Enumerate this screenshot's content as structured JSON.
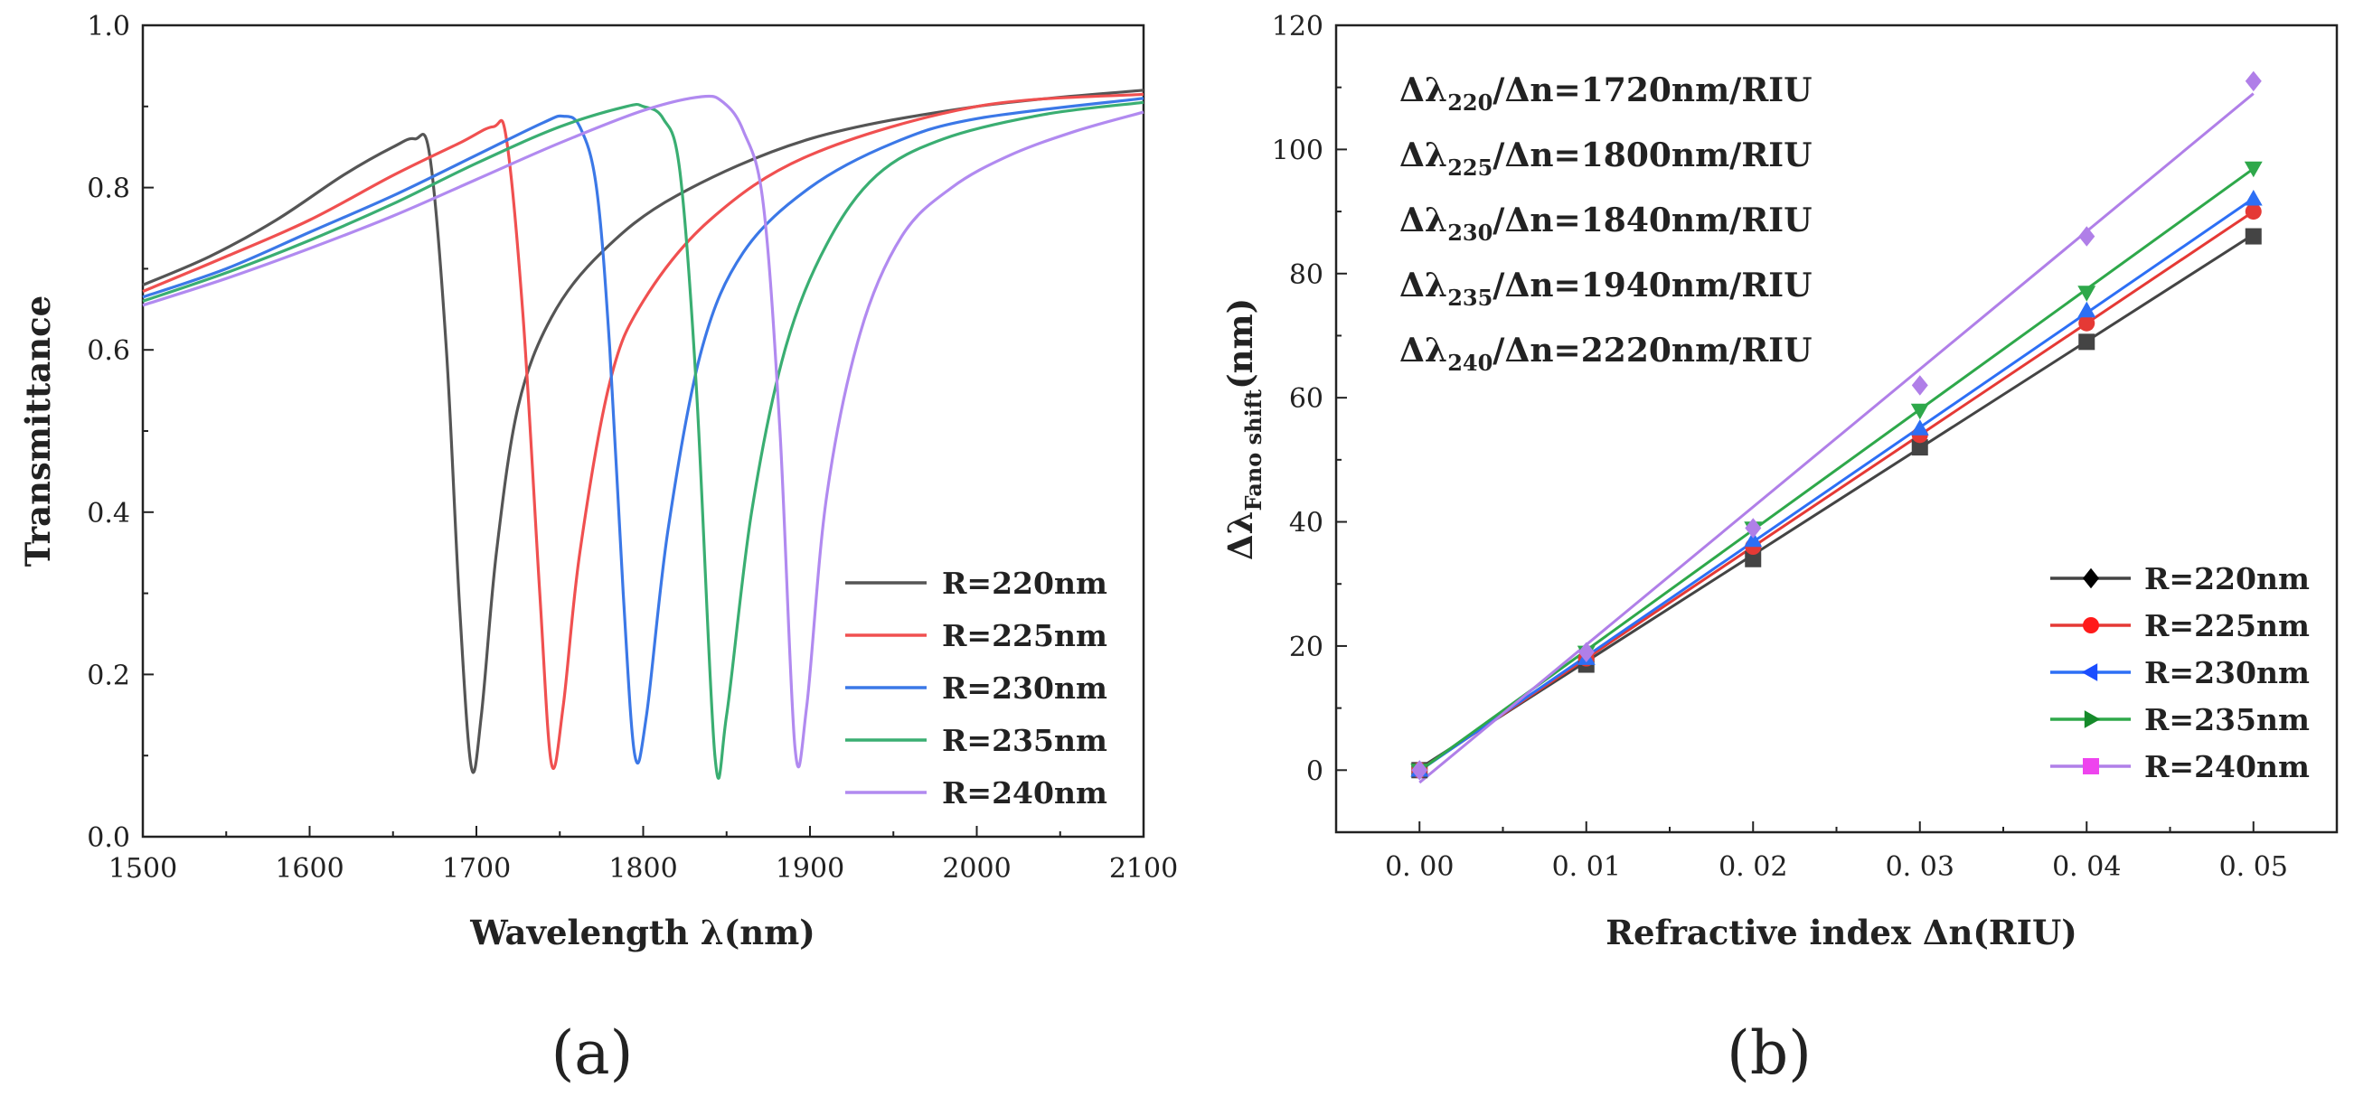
{
  "chart_data": [
    {
      "panel": "(a)",
      "type": "line",
      "xlabel": "Wavelength λ(nm)",
      "ylabel": "Transmittance",
      "xlim": [
        1500,
        2100
      ],
      "ylim": [
        0.0,
        1.0
      ],
      "x_ticks": [
        "1500",
        "1600",
        "1700",
        "1800",
        "1900",
        "2000",
        "2100"
      ],
      "y_ticks": [
        "0.0",
        "0.2",
        "0.4",
        "0.6",
        "0.8",
        "1.0"
      ],
      "legend_position": "bottom-right",
      "series": [
        {
          "name": "R=220nm",
          "color": "#555555",
          "x": [
            1500,
            1540,
            1580,
            1620,
            1650,
            1663,
            1672,
            1682,
            1690,
            1697,
            1703,
            1712,
            1725,
            1745,
            1775,
            1820,
            1900,
            2000,
            2100
          ],
          "y": [
            0.68,
            0.715,
            0.76,
            0.815,
            0.85,
            0.86,
            0.84,
            0.6,
            0.28,
            0.085,
            0.15,
            0.35,
            0.53,
            0.64,
            0.72,
            0.79,
            0.86,
            0.9,
            0.92
          ]
        },
        {
          "name": "R=225nm",
          "color": "#f05050",
          "x": [
            1500,
            1550,
            1600,
            1650,
            1690,
            1710,
            1718,
            1728,
            1738,
            1745,
            1752,
            1762,
            1780,
            1800,
            1840,
            1900,
            2000,
            2100
          ],
          "y": [
            0.672,
            0.715,
            0.76,
            0.815,
            0.855,
            0.875,
            0.86,
            0.64,
            0.3,
            0.09,
            0.16,
            0.35,
            0.56,
            0.66,
            0.76,
            0.84,
            0.9,
            0.915
          ]
        },
        {
          "name": "R=230nm",
          "color": "#3b78e7",
          "x": [
            1500,
            1550,
            1600,
            1650,
            1700,
            1740,
            1752,
            1762,
            1772,
            1780,
            1788,
            1795,
            1802,
            1815,
            1835,
            1860,
            1900,
            1950,
            2000,
            2100
          ],
          "y": [
            0.665,
            0.7,
            0.745,
            0.79,
            0.84,
            0.88,
            0.888,
            0.875,
            0.8,
            0.6,
            0.3,
            0.1,
            0.15,
            0.38,
            0.6,
            0.72,
            0.8,
            0.855,
            0.885,
            0.91
          ]
        },
        {
          "name": "R=235nm",
          "color": "#3aae72",
          "x": [
            1500,
            1550,
            1600,
            1650,
            1700,
            1750,
            1790,
            1800,
            1812,
            1822,
            1832,
            1843,
            1850,
            1865,
            1885,
            1910,
            1940,
            1980,
            2040,
            2100
          ],
          "y": [
            0.66,
            0.695,
            0.735,
            0.78,
            0.83,
            0.875,
            0.9,
            0.9,
            0.885,
            0.82,
            0.55,
            0.1,
            0.15,
            0.4,
            0.6,
            0.73,
            0.815,
            0.86,
            0.89,
            0.905
          ]
        },
        {
          "name": "R=240nm",
          "color": "#b18af0",
          "x": [
            1500,
            1550,
            1600,
            1650,
            1700,
            1750,
            1800,
            1835,
            1848,
            1860,
            1872,
            1882,
            1891,
            1898,
            1910,
            1930,
            1955,
            1985,
            2020,
            2060,
            2100
          ],
          "y": [
            0.655,
            0.688,
            0.725,
            0.765,
            0.81,
            0.855,
            0.895,
            0.912,
            0.905,
            0.87,
            0.78,
            0.5,
            0.11,
            0.16,
            0.42,
            0.62,
            0.74,
            0.8,
            0.84,
            0.87,
            0.893
          ]
        }
      ]
    },
    {
      "panel": "(b)",
      "type": "scatter",
      "xlabel": "Refractive index Δn(RIU)",
      "ylabel_main": "Δλ",
      "ylabel_sub": "Fano shift",
      "ylabel_tail": "(nm)",
      "xlim": [
        -0.005,
        0.055
      ],
      "ylim": [
        -10,
        120
      ],
      "x_ticks": [
        "0.00",
        "0.01",
        "0.02",
        "0.03",
        "0.04",
        "0.05"
      ],
      "y_ticks": [
        "0",
        "20",
        "40",
        "60",
        "80",
        "100",
        "120"
      ],
      "legend_position": "bottom-right",
      "annotations": [
        {
          "sub": "220",
          "value": "/Δn=1720nm/RIU"
        },
        {
          "sub": "225",
          "value": "/Δn=1800nm/RIU"
        },
        {
          "sub": "230",
          "value": "/Δn=1840nm/RIU"
        },
        {
          "sub": "235",
          "value": "/Δn=1940nm/RIU"
        },
        {
          "sub": "240",
          "value": "/Δn=2220nm/RIU"
        }
      ],
      "series": [
        {
          "name": "R=220nm",
          "legend_marker": "diamond",
          "legend_color": "#000000",
          "plot_marker": "square",
          "color": "#444444",
          "x": [
            0.0,
            0.01,
            0.02,
            0.03,
            0.04,
            0.05
          ],
          "values": [
            0,
            17,
            34,
            52,
            69,
            86
          ],
          "fit": [
            0.3,
            86.3
          ]
        },
        {
          "name": "R=225nm",
          "legend_marker": "circle",
          "legend_color": "#ff1a1a",
          "plot_marker": "circle",
          "color": "#e53935",
          "x": [
            0.0,
            0.01,
            0.02,
            0.03,
            0.04,
            0.05
          ],
          "values": [
            0,
            18,
            36,
            54,
            72,
            90
          ],
          "fit": [
            0.0,
            90.0
          ]
        },
        {
          "name": "R=230nm",
          "legend_marker": "triangle-left",
          "legend_color": "#1a4dff",
          "plot_marker": "triangle-up",
          "color": "#2d6ff5",
          "x": [
            0.0,
            0.01,
            0.02,
            0.03,
            0.04,
            0.05
          ],
          "values": [
            0,
            18,
            37,
            55,
            74,
            92
          ],
          "fit": [
            -0.1,
            92.1
          ]
        },
        {
          "name": "R=235nm",
          "legend_marker": "triangle-right",
          "legend_color": "#158a2a",
          "plot_marker": "triangle-down",
          "color": "#2ea84a",
          "x": [
            0.0,
            0.01,
            0.02,
            0.03,
            0.04,
            0.05
          ],
          "values": [
            0,
            19,
            39,
            58,
            77,
            97
          ],
          "fit": [
            -0.1,
            96.9
          ]
        },
        {
          "name": "R=240nm",
          "legend_marker": "square",
          "legend_color": "#ee44ee",
          "plot_marker": "diamond",
          "color": "#b07fe8",
          "x": [
            0.0,
            0.01,
            0.02,
            0.03,
            0.04,
            0.05
          ],
          "values": [
            0,
            19,
            39,
            62,
            86,
            111
          ],
          "fit": [
            -2.0,
            109.0
          ]
        }
      ]
    }
  ]
}
